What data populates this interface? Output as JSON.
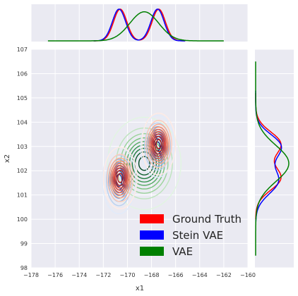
{
  "chart_data": {
    "type": "kde-jointplot",
    "xlabel": "x1",
    "ylabel": "x2",
    "xlim": [
      -178,
      -160
    ],
    "ylim": [
      98,
      107
    ],
    "xticks": [
      "−178",
      "−176",
      "−174",
      "−172",
      "−170",
      "−168",
      "−166",
      "−164",
      "−162",
      "−160"
    ],
    "xtick_values": [
      -178,
      -176,
      -174,
      -172,
      -170,
      -168,
      -166,
      -164,
      -162,
      -160
    ],
    "yticks": [
      "98",
      "99",
      "100",
      "101",
      "102",
      "103",
      "104",
      "105",
      "106",
      "107"
    ],
    "ytick_values": [
      98,
      99,
      100,
      101,
      102,
      103,
      104,
      105,
      106,
      107
    ],
    "grid": true,
    "legend_position": "bottom-right",
    "series": [
      {
        "name": "Ground Truth",
        "color": "#ff0000",
        "lines": "continuous",
        "modes": [
          {
            "x": -170.6,
            "y": 101.7,
            "sx": 0.55,
            "sy": 0.5,
            "w": 0.5
          },
          {
            "x": -167.4,
            "y": 103.1,
            "sx": 0.55,
            "sy": 0.5,
            "w": 0.5
          }
        ],
        "x_marginal": {
          "range": [
            -172.8,
            -165.2
          ]
        },
        "y_marginal": {
          "range": [
            100.0,
            105.2
          ]
        }
      },
      {
        "name": "Stein VAE",
        "color": "#0000ff",
        "lines": "continuous",
        "modes": [
          {
            "x": -170.7,
            "y": 101.6,
            "sx": 0.55,
            "sy": 0.55,
            "w": 0.5
          },
          {
            "x": -167.5,
            "y": 103.0,
            "sx": 0.55,
            "sy": 0.5,
            "w": 0.5
          }
        ],
        "x_marginal": {
          "range": [
            -172.8,
            -165.2
          ]
        },
        "y_marginal": {
          "range": [
            99.9,
            105.3
          ]
        }
      },
      {
        "name": "VAE",
        "color": "#008000",
        "lines": "dashed",
        "modes": [
          {
            "x": -168.6,
            "y": 102.3,
            "sx": 1.2,
            "sy": 0.75,
            "w": 1.0
          }
        ],
        "x_marginal": {
          "range": [
            -176.6,
            -162.0
          ]
        },
        "y_marginal": {
          "range": [
            98.5,
            106.5
          ]
        }
      }
    ]
  }
}
